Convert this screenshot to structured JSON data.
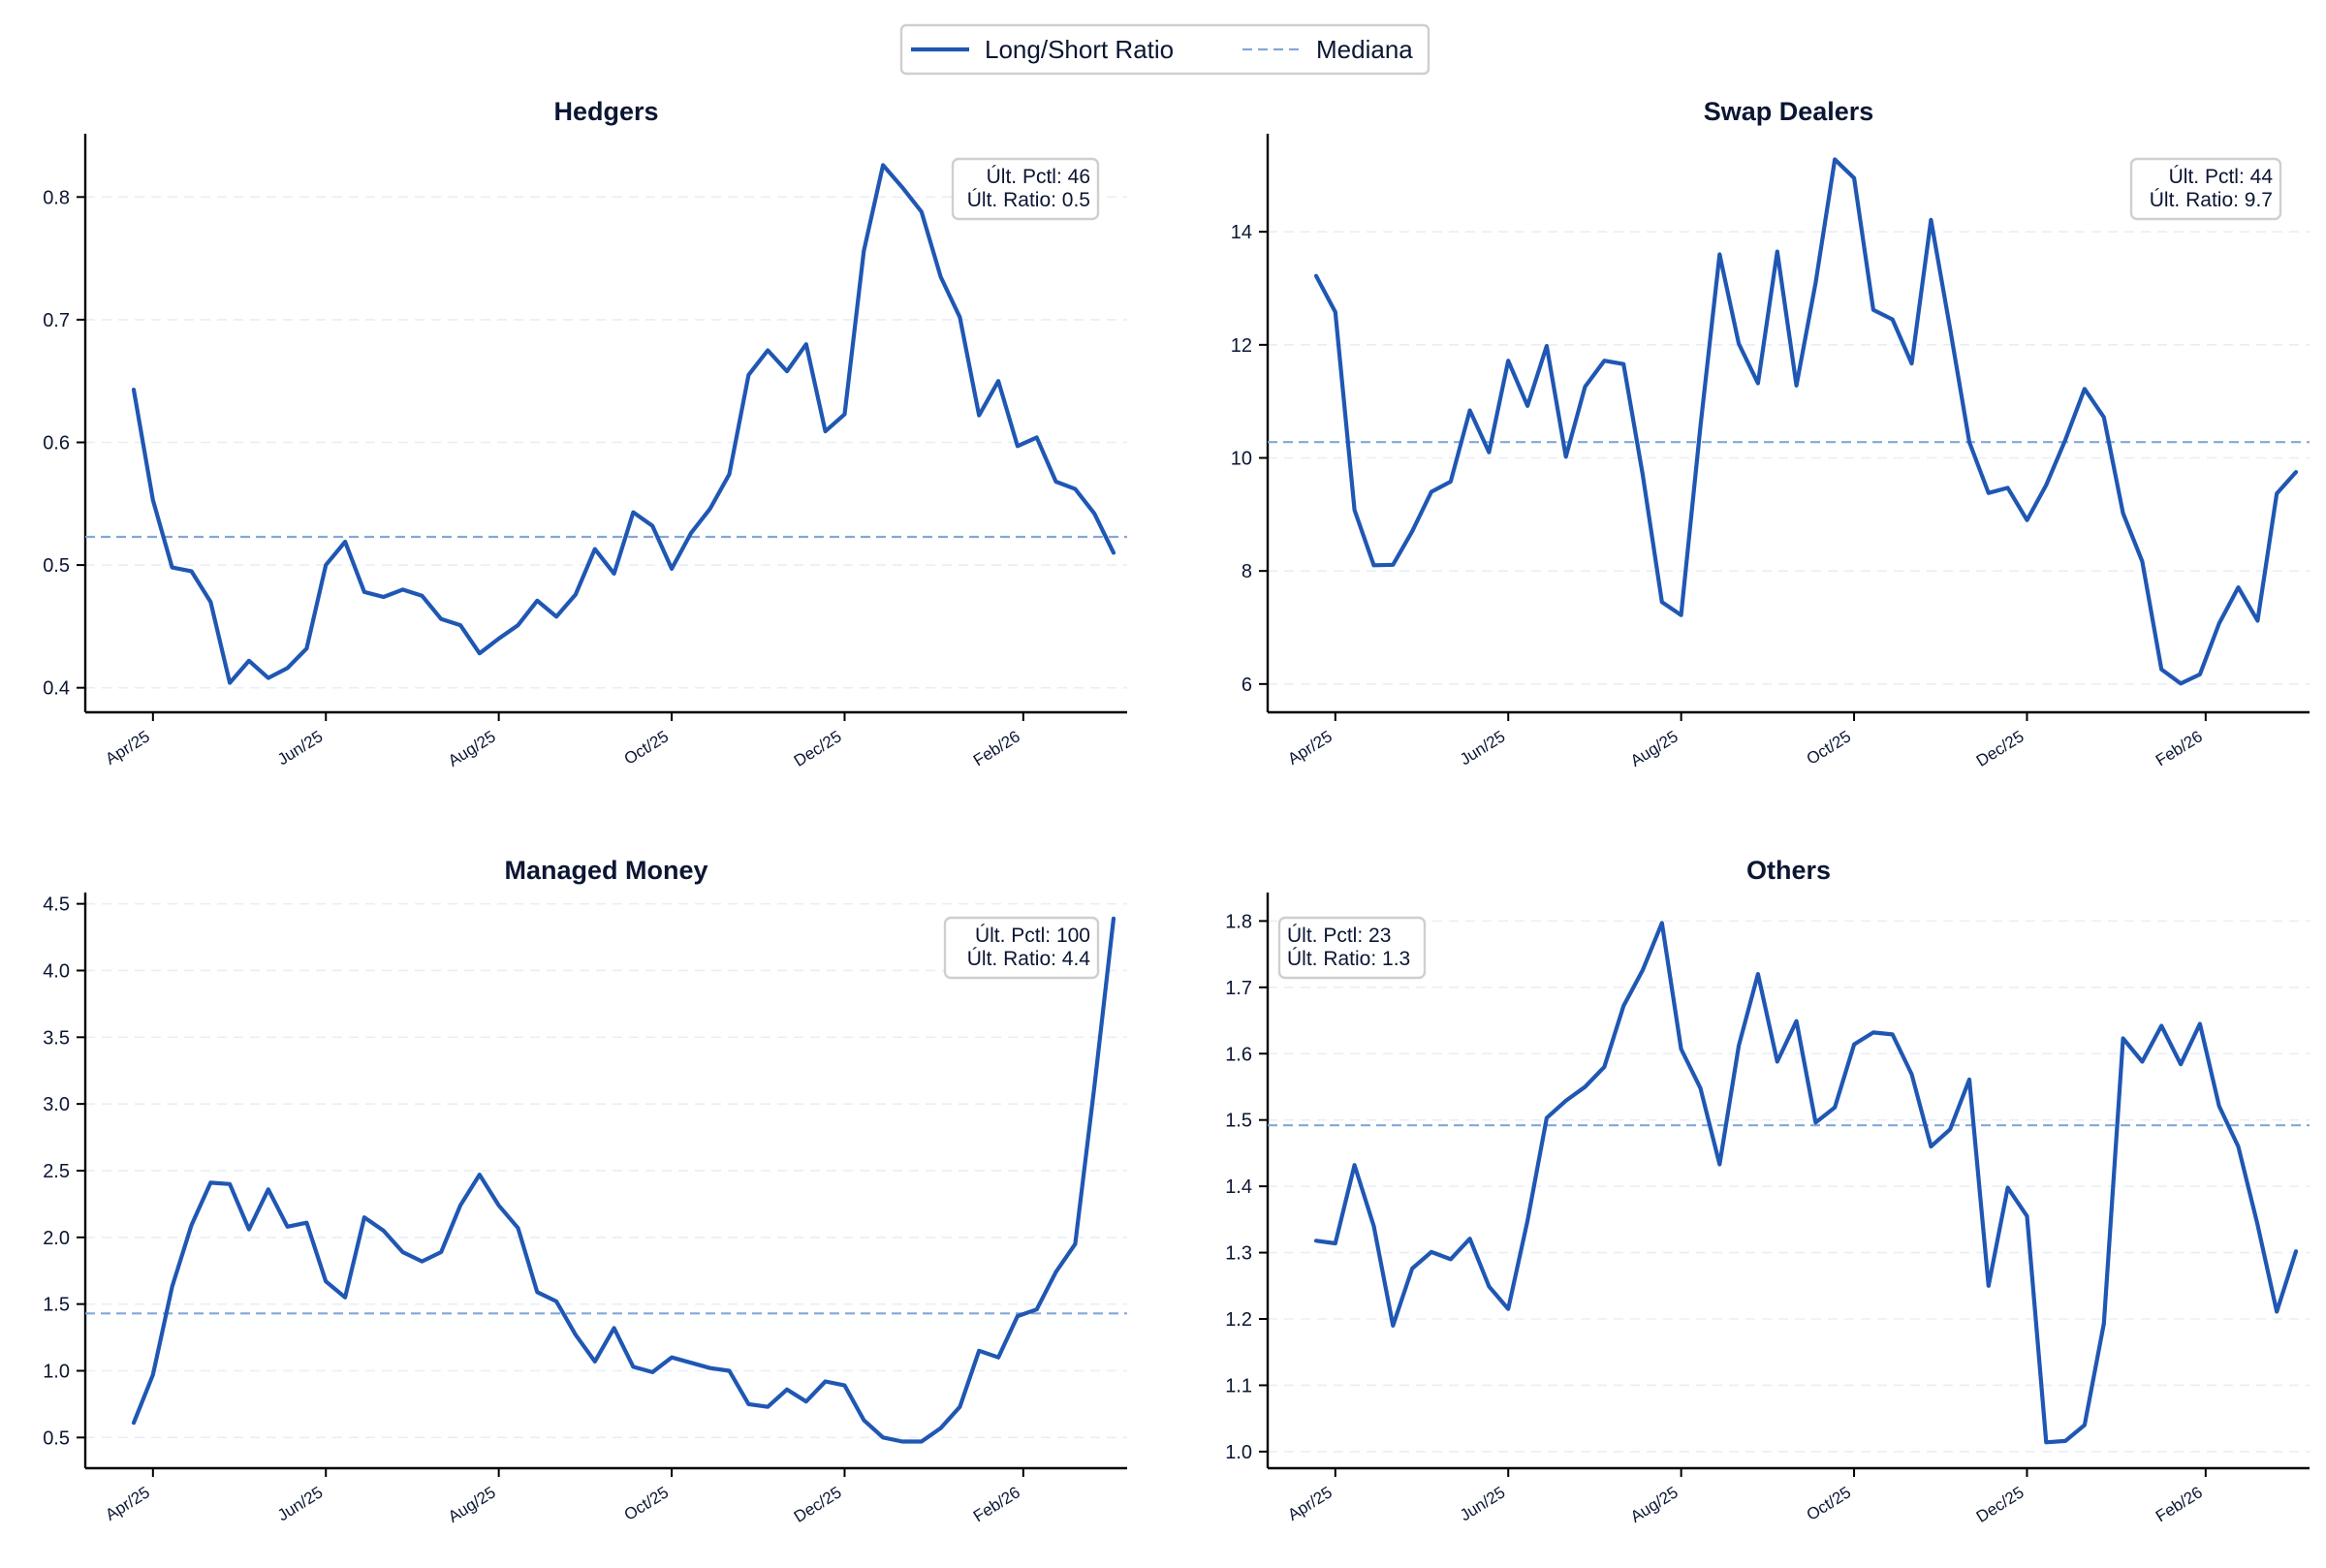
{
  "legend": {
    "ratio_label": "Long/Short Ratio",
    "median_label": "Mediana"
  },
  "colors": {
    "series": "#1f57b3",
    "median": "#84a7d8"
  },
  "chart_data": [
    {
      "type": "line",
      "title": "Hedgers",
      "x_tick_labels": [
        "Apr/25",
        "Jun/25",
        "Aug/25",
        "Oct/25",
        "Dec/25",
        "Feb/26"
      ],
      "x_tick_weeks": [
        1,
        10,
        19,
        28,
        37,
        46.3
      ],
      "ylim": [
        0.38,
        0.85
      ],
      "yticks": [
        0.4,
        0.5,
        0.6,
        0.7,
        0.8
      ],
      "ytick_labels": [
        "0.4",
        "0.5",
        "0.6",
        "0.7",
        "0.8"
      ],
      "grid": true,
      "annotation_position": "top-right",
      "annotation_lines": [
        "Últ. Pctl: 46",
        "Últ. Ratio: 0.5"
      ],
      "median": 0.523,
      "series": [
        {
          "name": "Long/Short Ratio",
          "values": [
            0.643,
            0.553,
            0.498,
            0.495,
            0.47,
            0.404,
            0.422,
            0.408,
            0.416,
            0.432,
            0.5,
            0.519,
            0.478,
            0.474,
            0.48,
            0.475,
            0.456,
            0.451,
            0.428,
            0.44,
            0.451,
            0.471,
            0.458,
            0.476,
            0.513,
            0.493,
            0.543,
            0.532,
            0.497,
            0.526,
            0.546,
            0.574,
            0.655,
            0.675,
            0.658,
            0.68,
            0.609,
            0.623,
            0.756,
            0.826,
            0.808,
            0.788,
            0.735,
            0.702,
            0.622,
            0.65,
            0.597,
            0.604,
            0.568,
            0.562,
            0.542,
            0.51
          ]
        }
      ]
    },
    {
      "type": "line",
      "title": "Swap Dealers",
      "x_tick_labels": [
        "Apr/25",
        "Jun/25",
        "Aug/25",
        "Oct/25",
        "Dec/25",
        "Feb/26"
      ],
      "x_tick_weeks": [
        1,
        10,
        19,
        28,
        37,
        46.3
      ],
      "ylim": [
        5.5,
        15.7
      ],
      "yticks": [
        6,
        8,
        10,
        12,
        14
      ],
      "ytick_labels": [
        "6",
        "8",
        "10",
        "12",
        "14"
      ],
      "grid": true,
      "annotation_position": "top-right",
      "annotation_lines": [
        "Últ. Pctl: 44",
        "Últ. Ratio: 9.7"
      ],
      "median": 10.28,
      "series": [
        {
          "name": "Long/Short Ratio",
          "values": [
            13.22,
            12.58,
            9.08,
            8.1,
            8.11,
            8.7,
            9.4,
            9.58,
            10.84,
            10.1,
            11.72,
            10.92,
            11.98,
            10.02,
            11.26,
            11.72,
            11.66,
            9.7,
            7.45,
            7.22,
            10.55,
            13.6,
            12.02,
            11.32,
            13.65,
            11.28,
            13.1,
            15.28,
            14.95,
            12.62,
            12.45,
            11.67,
            14.21,
            12.28,
            10.28,
            9.38,
            9.47,
            8.9,
            9.52,
            10.32,
            11.22,
            10.72,
            9.02,
            8.17,
            6.26,
            6.01,
            6.17,
            7.07,
            7.71,
            7.12,
            9.37,
            9.75
          ]
        }
      ]
    },
    {
      "type": "line",
      "title": "Managed Money",
      "x_tick_labels": [
        "Apr/25",
        "Jun/25",
        "Aug/25",
        "Oct/25",
        "Dec/25",
        "Feb/26"
      ],
      "x_tick_weeks": [
        1,
        10,
        19,
        28,
        37,
        46.3
      ],
      "ylim": [
        0.27,
        4.57
      ],
      "yticks": [
        0.5,
        1.0,
        1.5,
        2.0,
        2.5,
        3.0,
        3.5,
        4.0,
        4.5
      ],
      "ytick_labels": [
        "0.5",
        "1.0",
        "1.5",
        "2.0",
        "2.5",
        "3.0",
        "3.5",
        "4.0",
        "4.5"
      ],
      "grid": true,
      "annotation_position": "top-right",
      "annotation_lines": [
        "Últ. Pctl: 100",
        "Últ. Ratio: 4.4"
      ],
      "median": 1.43,
      "series": [
        {
          "name": "Long/Short Ratio",
          "values": [
            0.61,
            0.97,
            1.63,
            2.09,
            2.41,
            2.4,
            2.06,
            2.36,
            2.08,
            2.11,
            1.67,
            1.55,
            2.15,
            2.05,
            1.89,
            1.82,
            1.89,
            2.24,
            2.47,
            2.24,
            2.07,
            1.59,
            1.52,
            1.27,
            1.07,
            1.32,
            1.03,
            0.99,
            1.1,
            1.06,
            1.02,
            1.0,
            0.75,
            0.73,
            0.86,
            0.77,
            0.92,
            0.89,
            0.63,
            0.5,
            0.47,
            0.47,
            0.57,
            0.73,
            1.15,
            1.1,
            1.41,
            1.46,
            1.74,
            1.95,
            3.13,
            4.39
          ]
        }
      ]
    },
    {
      "type": "line",
      "title": "Others",
      "x_tick_labels": [
        "Apr/25",
        "Jun/25",
        "Aug/25",
        "Oct/25",
        "Dec/25",
        "Feb/26"
      ],
      "x_tick_weeks": [
        1,
        10,
        19,
        28,
        37,
        46.3
      ],
      "ylim": [
        0.975,
        1.84
      ],
      "yticks": [
        1.0,
        1.1,
        1.2,
        1.3,
        1.4,
        1.5,
        1.6,
        1.7,
        1.8
      ],
      "ytick_labels": [
        "1.0",
        "1.1",
        "1.2",
        "1.3",
        "1.4",
        "1.5",
        "1.6",
        "1.7",
        "1.8"
      ],
      "grid": true,
      "annotation_position": "top-left",
      "annotation_lines": [
        "Últ. Pctl: 23",
        "Últ. Ratio: 1.3"
      ],
      "median": 1.492,
      "series": [
        {
          "name": "Long/Short Ratio",
          "values": [
            1.318,
            1.314,
            1.432,
            1.34,
            1.19,
            1.276,
            1.301,
            1.29,
            1.321,
            1.249,
            1.215,
            1.348,
            1.503,
            1.529,
            1.55,
            1.58,
            1.672,
            1.726,
            1.797,
            1.607,
            1.548,
            1.433,
            1.612,
            1.72,
            1.588,
            1.649,
            1.496,
            1.519,
            1.614,
            1.632,
            1.629,
            1.569,
            1.46,
            1.486,
            1.561,
            1.25,
            1.398,
            1.355,
            1.014,
            1.016,
            1.04,
            1.193,
            1.623,
            1.588,
            1.642,
            1.584,
            1.645,
            1.521,
            1.46,
            1.342,
            1.211,
            1.302
          ]
        }
      ]
    }
  ]
}
